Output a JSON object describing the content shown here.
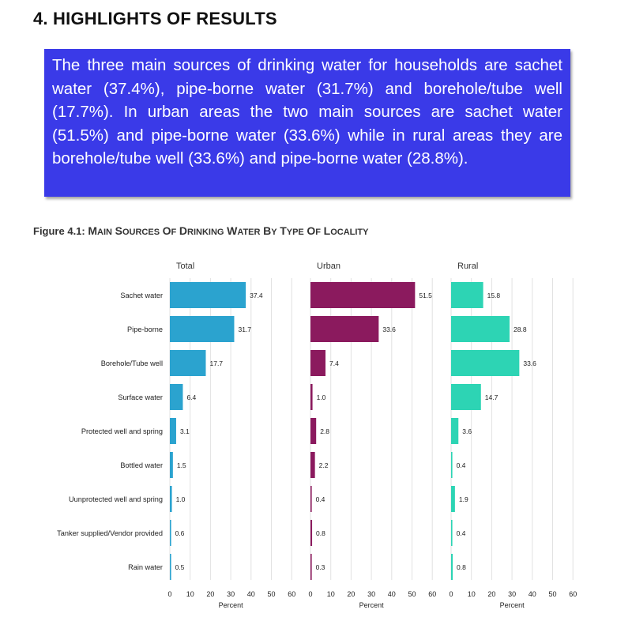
{
  "section": {
    "heading": "4. HIGHLIGHTS OF RESULTS",
    "summary": "The three main sources of drinking water for households are sachet water (37.4%), pipe-borne water (31.7%) and borehole/tube well (17.7%). In urban areas the two main sources are sachet water (51.5%) and pipe-borne water (33.6%) while in rural areas they are borehole/tube well (33.6%) and pipe-borne water (28.8%).",
    "summary_bg": "#3a3ae8"
  },
  "figure": {
    "label": "Figure 4.1:",
    "title_words": [
      "Main",
      "sources",
      "of",
      "drinking",
      "water",
      "by",
      "type",
      "of",
      "locality"
    ]
  },
  "chart_data": {
    "type": "bar",
    "orientation": "horizontal",
    "categories": [
      "Sachet water",
      "Pipe-borne",
      "Borehole/Tube well",
      "Surface water",
      "Protected well and spring",
      "Bottled water",
      "Uunprotected well and spring",
      "Tanker supplied/Vendor provided",
      "Rain water"
    ],
    "panels": [
      {
        "name": "Total",
        "color": "#2ba3cf",
        "values": [
          37.4,
          31.7,
          17.7,
          6.4,
          3.1,
          1.5,
          1.0,
          0.6,
          0.5
        ],
        "labels": [
          "37.4",
          "31.7",
          "17.7",
          "6.4",
          "3.1",
          "1.5",
          "1.0",
          "0.6",
          "0.5"
        ]
      },
      {
        "name": "Urban",
        "color": "#8b1a5e",
        "values": [
          51.5,
          33.6,
          7.4,
          1.0,
          2.8,
          2.2,
          0.4,
          0.8,
          0.3
        ],
        "labels": [
          "51.5",
          "33.6",
          "7.4",
          "1.0",
          "2.8",
          "2.2",
          "0.4",
          "0.8",
          "0.3"
        ]
      },
      {
        "name": "Rural",
        "color": "#2dd4b4",
        "values": [
          15.8,
          28.8,
          33.6,
          14.7,
          3.6,
          0.4,
          1.9,
          0.4,
          0.8
        ],
        "labels": [
          "15.8",
          "28.8",
          "33.6",
          "14.7",
          "3.6",
          "0.4",
          "1.9",
          "0.4",
          "0.8"
        ]
      }
    ],
    "xlim": [
      0,
      60
    ],
    "xticks": [
      0,
      10,
      20,
      30,
      40,
      50,
      60
    ],
    "xtick_labels": [
      "0",
      "10",
      "20",
      "30",
      "40",
      "50",
      "60"
    ],
    "xlabel": "Percent",
    "grid": true
  }
}
